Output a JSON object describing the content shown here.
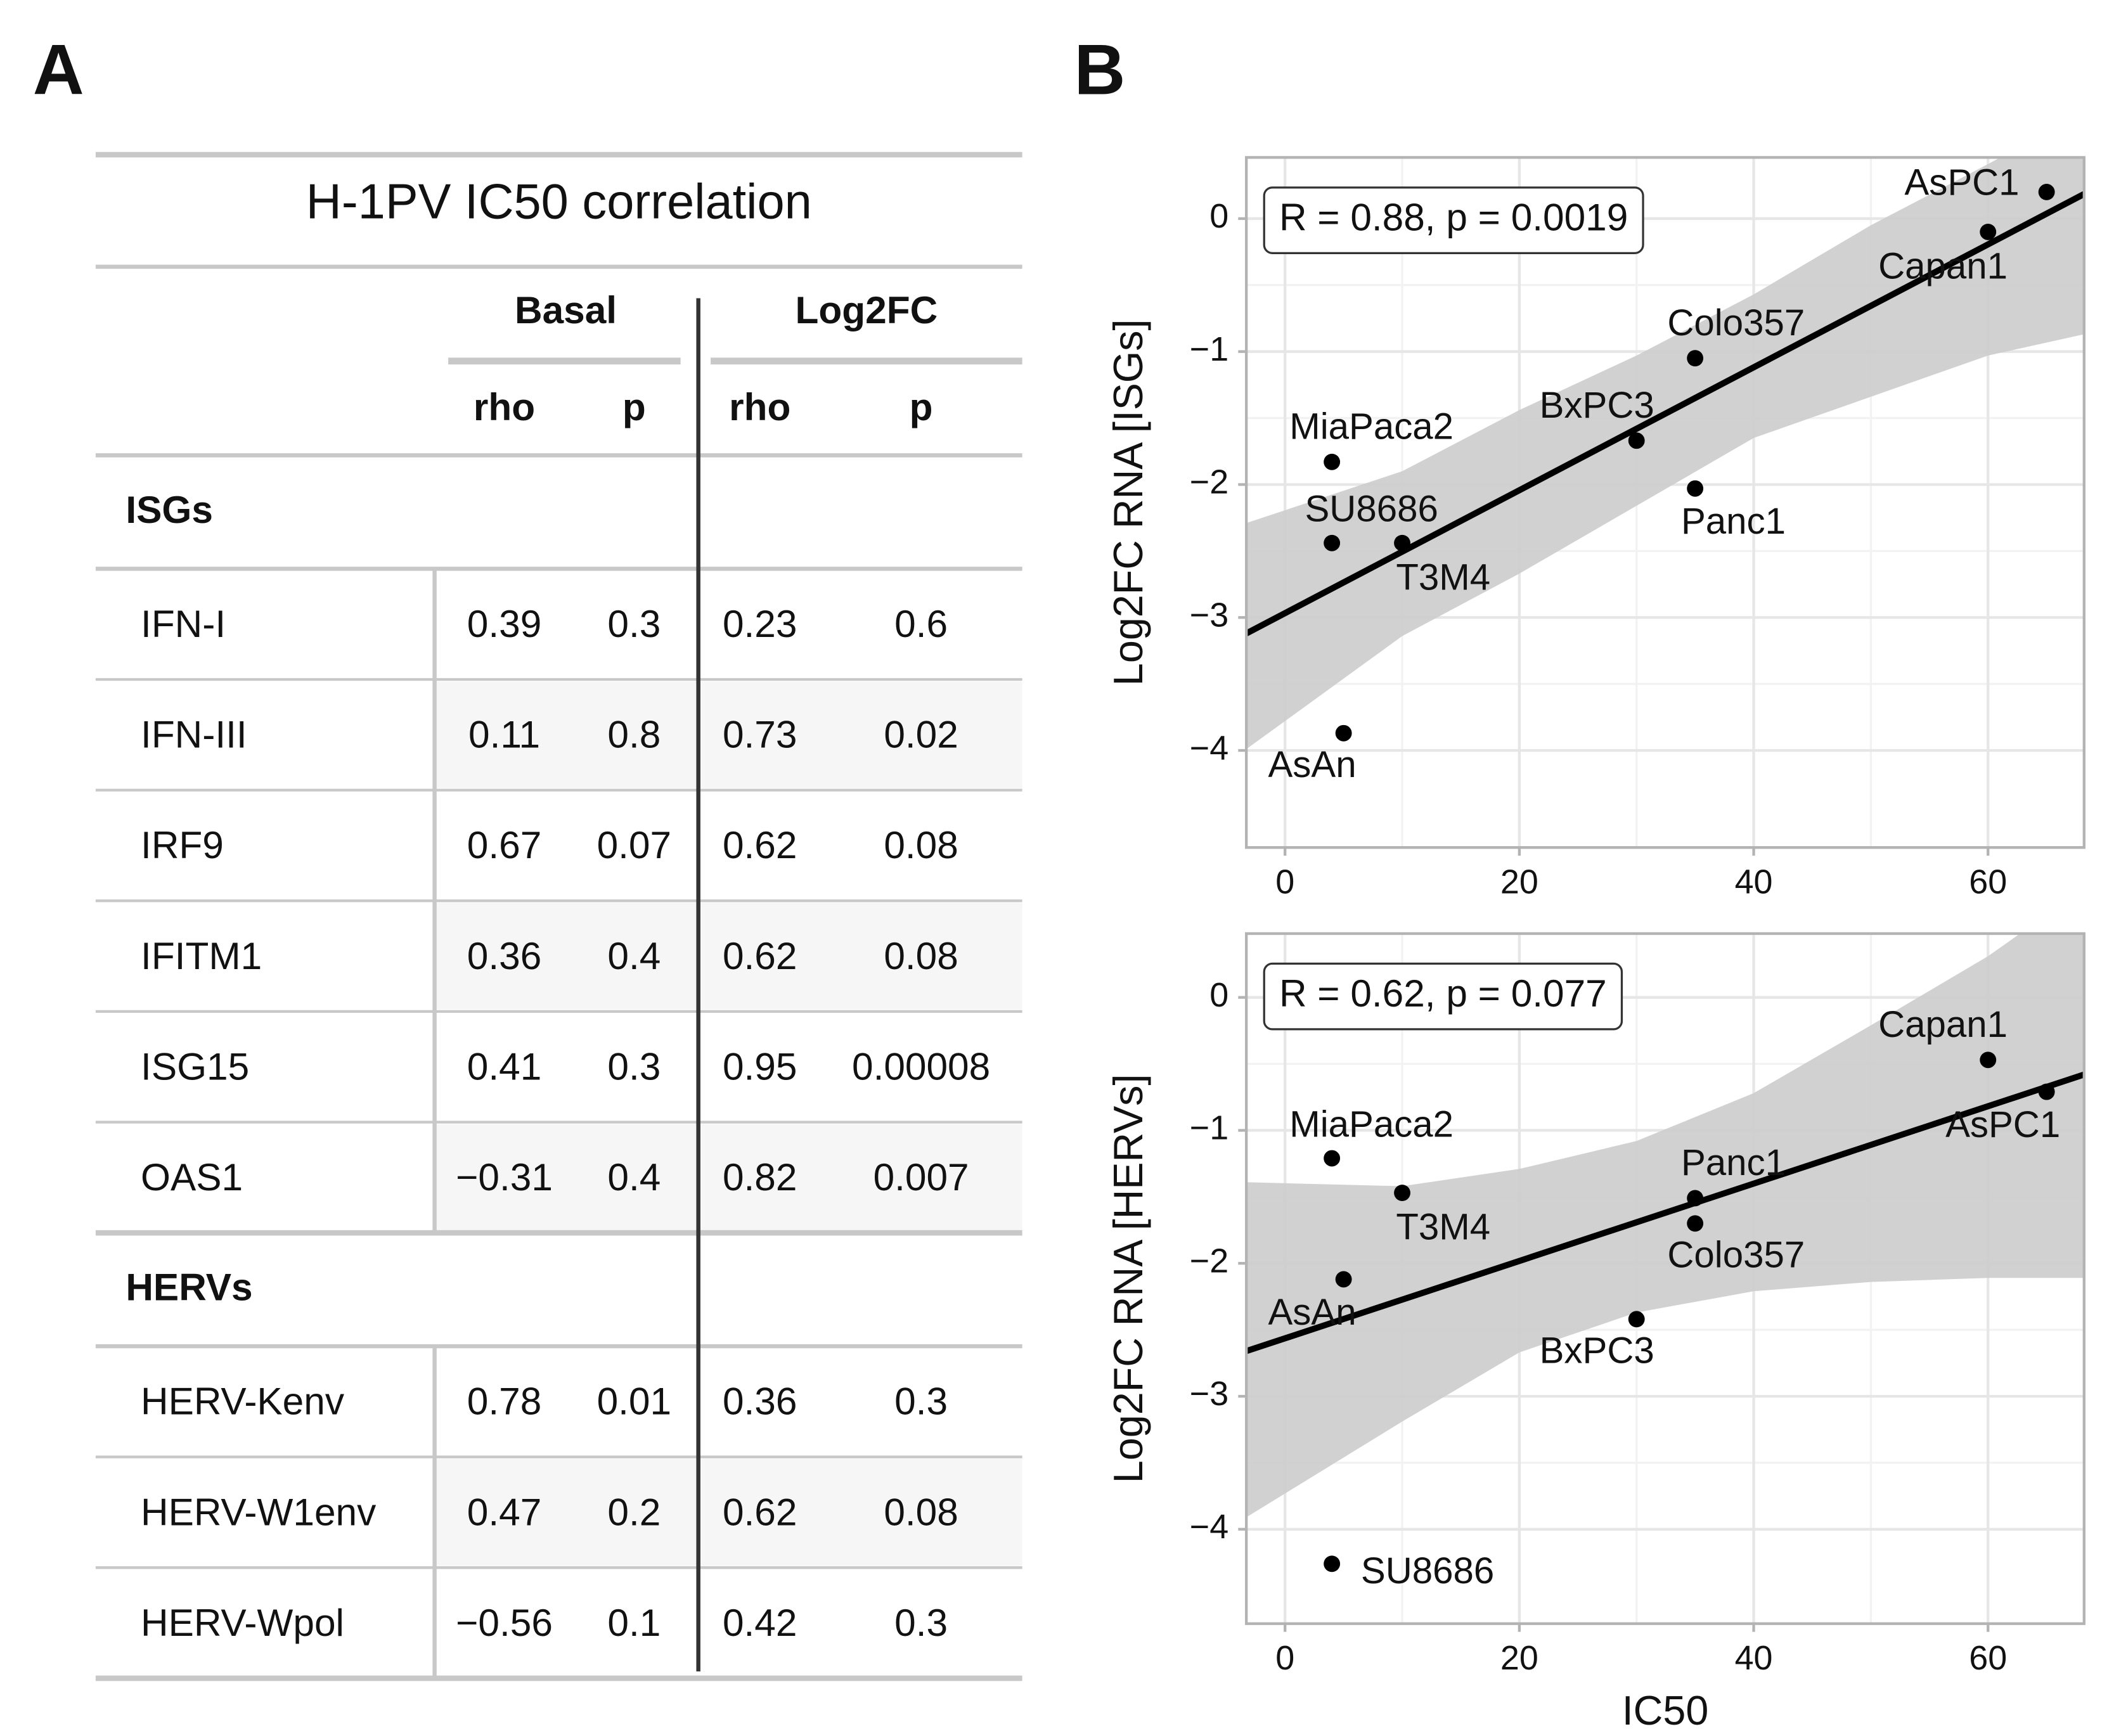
{
  "panel_labels": [
    "A",
    "B"
  ],
  "table": {
    "title": "H-1PV IC50 correlation",
    "group_headers": [
      "Basal",
      "Log2FC"
    ],
    "column_headers": [
      "rho",
      "p",
      "rho",
      "p"
    ],
    "sections": [
      {
        "name": "ISGs",
        "rows": [
          [
            "IFN-I",
            "0.39",
            "0.3",
            "0.23",
            "0.6"
          ],
          [
            "IFN-III",
            "0.11",
            "0.8",
            "0.73",
            "0.02"
          ],
          [
            "IRF9",
            "0.67",
            "0.07",
            "0.62",
            "0.08"
          ],
          [
            "IFITM1",
            "0.36",
            "0.4",
            "0.62",
            "0.08"
          ],
          [
            "ISG15",
            "0.41",
            "0.3",
            "0.95",
            "0.00008"
          ],
          [
            "OAS1",
            "−0.31",
            "0.4",
            "0.82",
            "0.007"
          ]
        ]
      },
      {
        "name": "HERVs",
        "rows": [
          [
            "HERV-Kenv",
            "0.78",
            "0.01",
            "0.36",
            "0.3"
          ],
          [
            "HERV-W1env",
            "0.47",
            "0.2",
            "0.62",
            "0.08"
          ],
          [
            "HERV-Wpol",
            "−0.56",
            "0.1",
            "0.42",
            "0.3"
          ]
        ]
      }
    ]
  },
  "chart_data": [
    {
      "type": "scatter",
      "ylabel": "Log2FC RNA [ISGs]",
      "annotation": "R = 0.88, p = 0.0019",
      "labels": [
        "AsPC1",
        "Capan1",
        "Colo357",
        "BxPC3",
        "Panc1",
        "MiaPaca2",
        "SU8686",
        "T3M4",
        "AsAn"
      ],
      "x": [
        65,
        60,
        35,
        30,
        35,
        4,
        4,
        10,
        5
      ],
      "values": [
        0.2,
        -0.1,
        -1.05,
        -1.67,
        -2.03,
        -1.83,
        -2.44,
        -2.44,
        -3.87
      ],
      "color": "#000000",
      "trend_line": {
        "x": [
          -3.3,
          68.2
        ],
        "y": [
          -3.12,
          0.185
        ],
        "color": "#000000"
      },
      "band": {
        "x": [
          -3.3,
          10,
          20,
          30,
          40,
          50,
          60,
          68.2
        ],
        "upper": [
          -2.29,
          -1.9,
          -1.44,
          -1.03,
          -0.57,
          -0.05,
          0.41,
          0.8
        ],
        "lower": [
          -3.99,
          -3.14,
          -2.67,
          -2.16,
          -1.65,
          -1.34,
          -1.03,
          -0.87
        ],
        "color": "#cccccc"
      },
      "xlim": [
        -3.3,
        68.2
      ],
      "ylim": [
        -4.73,
        0.46
      ],
      "xticks": [
        0,
        20,
        40,
        60
      ],
      "yticks": [
        {
          "value": -4,
          "label": "−4"
        },
        {
          "value": -3,
          "label": "−3"
        },
        {
          "value": -2,
          "label": "−2"
        },
        {
          "value": -1,
          "label": "−1"
        },
        0
      ],
      "grid": true
    },
    {
      "type": "scatter",
      "ylabel": "Log2FC RNA [HERVs]",
      "xlabel": "IC50",
      "annotation": "R = 0.62, p = 0.077",
      "labels": [
        "Capan1",
        "AsPC1",
        "MiaPaca2",
        "T3M4",
        "Panc1",
        "Colo357",
        "AsAn",
        "BxPC3",
        "SU8686"
      ],
      "x": [
        60,
        65,
        4,
        10,
        35,
        35,
        5,
        30,
        4
      ],
      "values": [
        -0.47,
        -0.71,
        -1.21,
        -1.47,
        -1.51,
        -1.7,
        -2.12,
        -2.42,
        -4.26
      ],
      "color": "#000000",
      "trend_line": {
        "x": [
          -3.3,
          68.2
        ],
        "y": [
          -2.66,
          -0.58
        ],
        "color": "#000000"
      },
      "band": {
        "x": [
          -3.3,
          10,
          20,
          30,
          40,
          50,
          60,
          68.2
        ],
        "upper": [
          -1.39,
          -1.42,
          -1.29,
          -1.08,
          -0.72,
          -0.21,
          0.31,
          0.82
        ],
        "lower": [
          -3.91,
          -3.19,
          -2.67,
          -2.37,
          -2.21,
          -2.14,
          -2.11,
          -2.11
        ],
        "color": "#cccccc"
      },
      "xlim": [
        -3.3,
        68.2
      ],
      "ylim": [
        -4.71,
        0.48
      ],
      "xticks": [
        0,
        20,
        40,
        60
      ],
      "yticks": [
        {
          "value": -4,
          "label": "−4"
        },
        {
          "value": -3,
          "label": "−3"
        },
        {
          "value": -2,
          "label": "−2"
        },
        {
          "value": -1,
          "label": "−1"
        },
        0
      ],
      "grid": true
    }
  ]
}
